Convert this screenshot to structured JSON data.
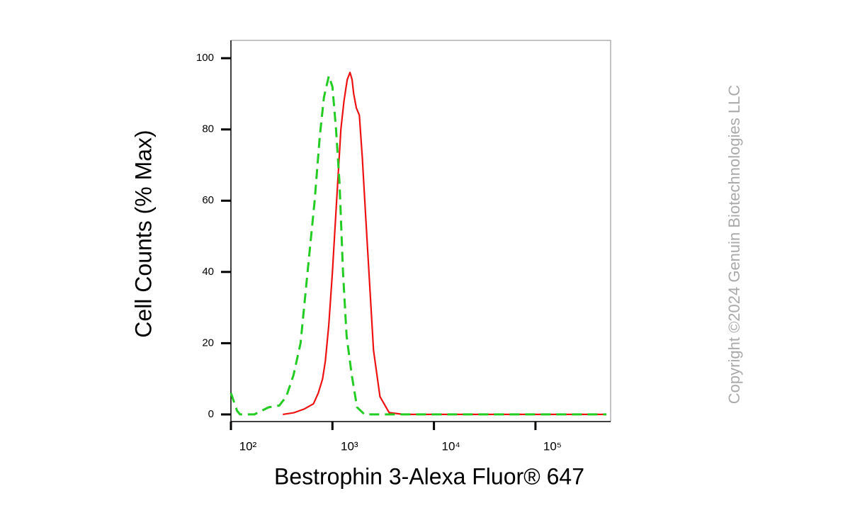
{
  "chart_data": {
    "type": "line",
    "xlabel": "Bestrophin 3-Alexa Fluor® 647",
    "ylabel": "Cell Counts (% Max)",
    "xscale": "log",
    "xlim": [
      100,
      550000
    ],
    "ylim": [
      -2,
      105
    ],
    "xticks": [
      {
        "value": 100,
        "label": "10²"
      },
      {
        "value": 1000,
        "label": "10³"
      },
      {
        "value": 10000,
        "label": "10⁴"
      },
      {
        "value": 100000,
        "label": "10⁵"
      }
    ],
    "yticks": [
      0,
      20,
      40,
      60,
      80,
      100
    ],
    "series": [
      {
        "color": "#ee1111",
        "dash": false,
        "x": [
          324,
          420,
          525,
          650,
          725,
          800,
          851,
          920,
          1000,
          1100,
          1210,
          1300,
          1400,
          1490,
          1560,
          1620,
          1720,
          1840,
          1970,
          2130,
          2310,
          2540,
          2940,
          3620,
          5000,
          500000
        ],
        "values": [
          0,
          0.5,
          1.5,
          3,
          6,
          10,
          15,
          25,
          40,
          60,
          80,
          88,
          94,
          96,
          94,
          90,
          86,
          84,
          72,
          55,
          38,
          18,
          5,
          0.5,
          0,
          0
        ]
      },
      {
        "color": "#22cc22",
        "dash": true,
        "x": [
          100,
          115,
          123,
          170,
          235,
          299,
          351,
          413,
          485,
          569,
          668,
          750,
          825,
          922,
          1000,
          1085,
          1175,
          1270,
          1380,
          1550,
          1750,
          2070,
          500000
        ],
        "values": [
          6,
          1,
          0,
          0,
          2,
          2.5,
          5,
          11,
          20,
          40,
          60,
          78,
          89,
          95,
          92,
          80,
          65,
          40,
          22,
          11,
          2,
          0,
          0
        ]
      }
    ]
  },
  "copyright": "Copyright ©2024 Genuin Biotechnologies LLC"
}
